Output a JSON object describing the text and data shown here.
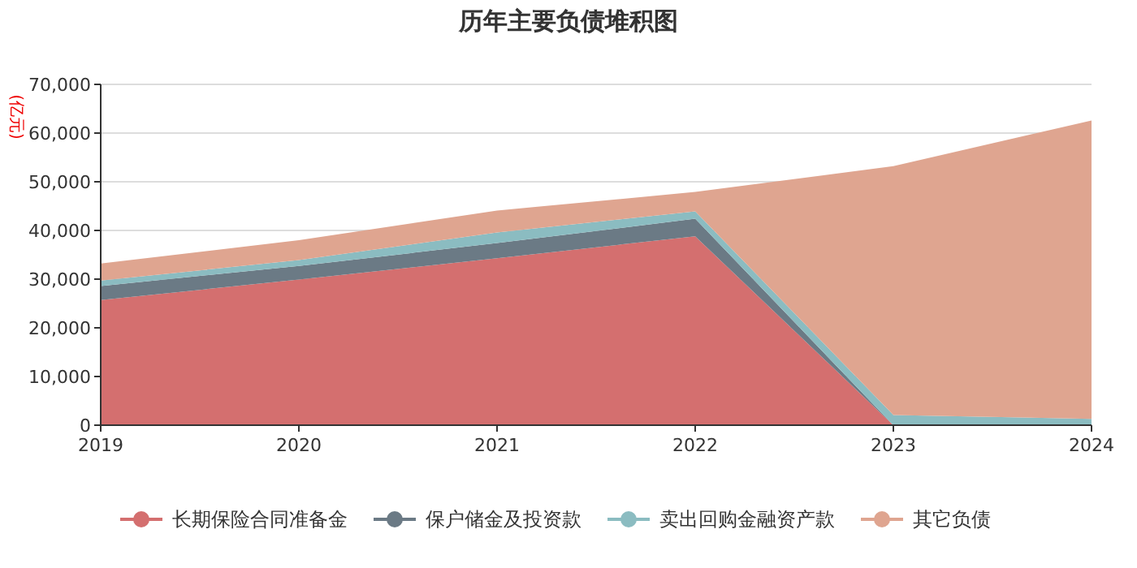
{
  "chart_data": {
    "type": "area",
    "title": "历年主要负债堆积图",
    "ylabel": "(亿元)",
    "stacked": true,
    "categories": [
      "2019",
      "2020",
      "2021",
      "2022",
      "2023",
      "2024"
    ],
    "series": [
      {
        "name": "长期保险合同准备金",
        "color": "#d46f6f",
        "values": [
          25700,
          29900,
          34300,
          38800,
          0,
          0
        ]
      },
      {
        "name": "保户储金及投资款",
        "color": "#6b7a85",
        "values": [
          2900,
          2800,
          3100,
          3600,
          0,
          0
        ]
      },
      {
        "name": "卖出回购金融资产款",
        "color": "#8bbcc1",
        "values": [
          1100,
          1200,
          2200,
          1500,
          2100,
          1300
        ]
      },
      {
        "name": "其它负债",
        "color": "#dfa590",
        "values": [
          3500,
          4100,
          4500,
          4000,
          51100,
          61300
        ]
      }
    ],
    "ylim": [
      0,
      70000
    ],
    "yticks": [
      0,
      {
        "value": 10000,
        "label": "10,000"
      },
      {
        "value": 20000,
        "label": "20,000"
      },
      {
        "value": 30000,
        "label": "30,000"
      },
      {
        "value": 40000,
        "label": "40,000"
      },
      {
        "value": 50000,
        "label": "50,000"
      },
      {
        "value": 60000,
        "label": "60,000"
      },
      {
        "value": 70000,
        "label": "70,000"
      }
    ],
    "grid": "y",
    "legend": "bottom"
  }
}
